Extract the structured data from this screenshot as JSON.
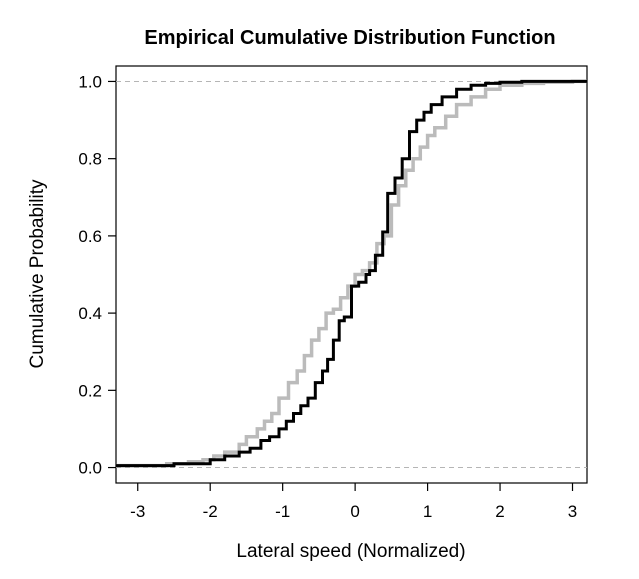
{
  "chart_data": {
    "type": "line",
    "title": "Empirical Cumulative Distribution Function",
    "xlabel": "Lateral speed (Normalized)",
    "ylabel": "Cumulative Probability",
    "xlim": [
      -3.3,
      3.2
    ],
    "ylim": [
      -0.04,
      1.04
    ],
    "x_ticks": [
      -3,
      -2,
      -1,
      0,
      1,
      2,
      3
    ],
    "x_tick_labels": [
      "-3",
      "-2",
      "-1",
      "0",
      "1",
      "2",
      "3"
    ],
    "y_ticks": [
      0.0,
      0.2,
      0.4,
      0.6,
      0.8,
      1.0
    ],
    "y_tick_labels": [
      "0.0",
      "0.2",
      "0.4",
      "0.6",
      "0.8",
      "1.0"
    ],
    "reference_lines": [
      0.0,
      1.0
    ],
    "grid": false,
    "legend": false,
    "series": [
      {
        "color": "#bbbbbb",
        "step": true,
        "x": [
          -3.3,
          -2.6,
          -2.3,
          -2.1,
          -1.95,
          -1.8,
          -1.6,
          -1.5,
          -1.35,
          -1.25,
          -1.15,
          -1.05,
          -0.92,
          -0.8,
          -0.7,
          -0.6,
          -0.5,
          -0.4,
          -0.3,
          -0.2,
          -0.1,
          0.0,
          0.1,
          0.2,
          0.3,
          0.4,
          0.5,
          0.6,
          0.7,
          0.8,
          0.9,
          1.0,
          1.1,
          1.25,
          1.4,
          1.6,
          1.8,
          2.0,
          2.3,
          2.6,
          3.0,
          3.2
        ],
        "y": [
          0.005,
          0.01,
          0.015,
          0.02,
          0.03,
          0.04,
          0.06,
          0.08,
          0.1,
          0.12,
          0.14,
          0.18,
          0.22,
          0.25,
          0.29,
          0.33,
          0.36,
          0.4,
          0.41,
          0.44,
          0.47,
          0.5,
          0.51,
          0.53,
          0.58,
          0.6,
          0.68,
          0.73,
          0.77,
          0.8,
          0.83,
          0.86,
          0.88,
          0.91,
          0.94,
          0.96,
          0.98,
          0.99,
          0.995,
          0.998,
          1.0,
          1.0
        ]
      },
      {
        "color": "#000000",
        "step": true,
        "x": [
          -3.3,
          -2.5,
          -2.0,
          -1.8,
          -1.6,
          -1.45,
          -1.3,
          -1.18,
          -1.05,
          -0.95,
          -0.85,
          -0.75,
          -0.65,
          -0.55,
          -0.45,
          -0.38,
          -0.3,
          -0.22,
          -0.15,
          -0.05,
          0.05,
          0.15,
          0.2,
          0.28,
          0.38,
          0.45,
          0.55,
          0.65,
          0.75,
          0.85,
          0.95,
          1.05,
          1.2,
          1.4,
          1.6,
          1.8,
          2.0,
          2.3,
          2.6,
          3.0,
          3.2
        ],
        "y": [
          0.005,
          0.01,
          0.02,
          0.03,
          0.04,
          0.05,
          0.07,
          0.08,
          0.1,
          0.12,
          0.14,
          0.16,
          0.18,
          0.22,
          0.25,
          0.28,
          0.33,
          0.38,
          0.39,
          0.47,
          0.48,
          0.5,
          0.51,
          0.55,
          0.61,
          0.71,
          0.75,
          0.8,
          0.87,
          0.9,
          0.92,
          0.94,
          0.96,
          0.98,
          0.99,
          0.995,
          0.998,
          1.0,
          1.0,
          1.0,
          1.0
        ]
      }
    ]
  }
}
